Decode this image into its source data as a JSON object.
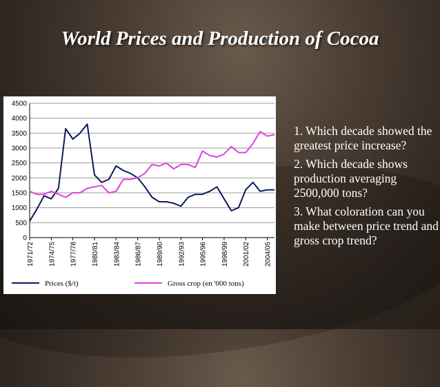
{
  "slide": {
    "title": "World Prices and Production of Cocoa",
    "questions": [
      "1. Which decade showed the greatest price increase?",
      "2. Which decade shows production averaging 2500,000 tons?",
      "3.  What coloration can you make between price trend and gross crop trend?"
    ]
  },
  "chart_data": {
    "type": "line",
    "ylim": [
      0,
      4500
    ],
    "yticks": [
      0,
      500,
      1000,
      1500,
      2000,
      2500,
      3000,
      3500,
      4000,
      4500
    ],
    "grid": true,
    "legend_placement": "bottom",
    "x_tick_labels": [
      "1971/72",
      "1974/75",
      "1977/78",
      "1980/81",
      "1983/84",
      "1986/87",
      "1989/90",
      "1992/93",
      "1995/96",
      "1998/99",
      "2001/02",
      "2004/05"
    ],
    "x": [
      "1971/72",
      "1972/73",
      "1973/74",
      "1974/75",
      "1975/76",
      "1976/77",
      "1977/78",
      "1978/79",
      "1979/80",
      "1980/81",
      "1981/82",
      "1982/83",
      "1983/84",
      "1984/85",
      "1985/86",
      "1986/87",
      "1987/88",
      "1988/89",
      "1989/90",
      "1990/91",
      "1991/92",
      "1992/93",
      "1993/94",
      "1994/95",
      "1995/96",
      "1996/97",
      "1997/98",
      "1998/99",
      "1999/00",
      "2000/01",
      "2001/02",
      "2002/03",
      "2003/04",
      "2004/05",
      "2005/06"
    ],
    "series": [
      {
        "name": "Prices ($/t)",
        "color": "#0a1a5c",
        "values": [
          550,
          950,
          1400,
          1300,
          1650,
          3650,
          3300,
          3500,
          3800,
          2100,
          1850,
          1950,
          2400,
          2250,
          2150,
          2000,
          1700,
          1350,
          1200,
          1200,
          1150,
          1050,
          1350,
          1450,
          1450,
          1550,
          1700,
          1300,
          900,
          1000,
          1600,
          1850,
          1550,
          1600,
          1600
        ]
      },
      {
        "name": "Gross crop (en '000 tons)",
        "color": "#e040e0",
        "values": [
          1550,
          1450,
          1450,
          1550,
          1450,
          1350,
          1500,
          1500,
          1650,
          1700,
          1750,
          1500,
          1550,
          1950,
          1950,
          2000,
          2150,
          2450,
          2400,
          2500,
          2300,
          2450,
          2450,
          2350,
          2900,
          2750,
          2700,
          2800,
          3050,
          2850,
          2850,
          3150,
          3550,
          3400,
          3450
        ]
      }
    ]
  }
}
